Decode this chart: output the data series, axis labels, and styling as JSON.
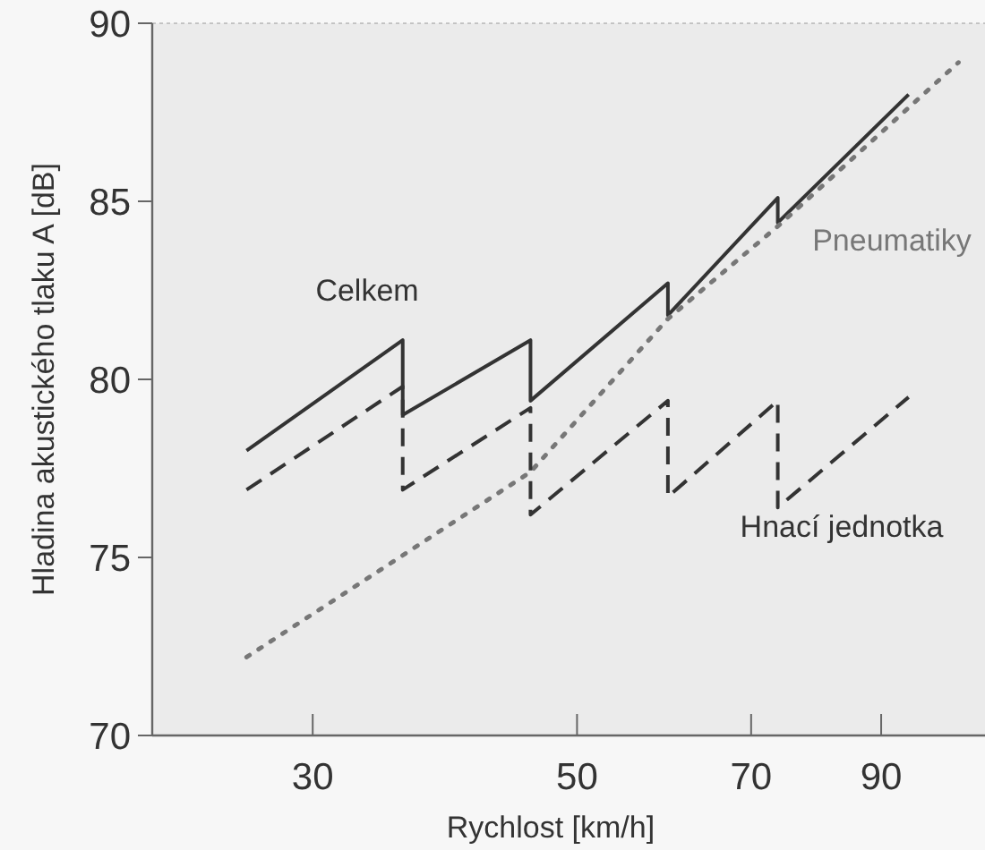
{
  "chart_data": {
    "type": "line",
    "xlabel": "Rychlost [km/h]",
    "ylabel": "Hladina akustického tlaku A [dB]",
    "log": "x",
    "xlim": [
      22,
      110
    ],
    "xticks": [
      30,
      50,
      70,
      90
    ],
    "ylim": [
      70,
      90
    ],
    "yticks": [
      70,
      75,
      80,
      85,
      90
    ],
    "grid": false,
    "series": [
      {
        "name": "Celkem",
        "color": "#333333",
        "line_style": "solid",
        "x": [
          26.4,
          35.7,
          35.7,
          45.7,
          45.7,
          59.6,
          59.6,
          73.7,
          73.7,
          94.9
        ],
        "values": [
          78.0,
          81.1,
          79.0,
          81.1,
          79.4,
          82.7,
          81.8,
          85.1,
          84.4,
          88.0
        ]
      },
      {
        "name": "Pneumatiky",
        "color": "#777777",
        "line_style": "dotted",
        "x": [
          26.4,
          45.7,
          59.6,
          73.7,
          104.5
        ],
        "values": [
          72.2,
          77.4,
          81.7,
          84.3,
          88.9
        ]
      },
      {
        "name": "Hnací jednotka",
        "color": "#333333",
        "line_style": "dashed",
        "x": [
          26.4,
          35.7,
          35.7,
          45.7,
          45.7,
          59.6,
          59.6,
          73.7,
          73.7,
          94.9
        ],
        "values": [
          76.9,
          79.8,
          76.9,
          79.2,
          76.2,
          79.4,
          76.7,
          79.4,
          76.4,
          79.5
        ]
      }
    ]
  }
}
